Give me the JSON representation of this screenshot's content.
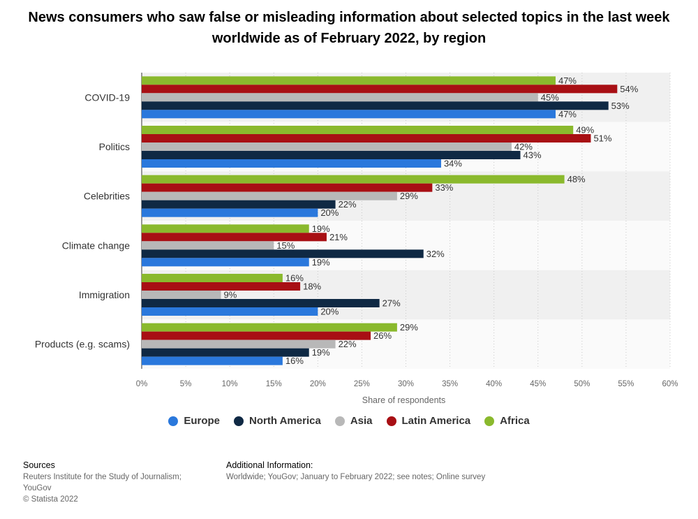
{
  "header": {
    "title": "News consumers who saw false or misleading information about selected topics in the last week worldwide as of February 2022, by region"
  },
  "chart_data": {
    "type": "bar",
    "orientation": "horizontal",
    "categories": [
      "COVID-19",
      "Politics",
      "Celebrities",
      "Climate change",
      "Immigration",
      "Products (e.g. scams)"
    ],
    "series": [
      {
        "name": "Africa",
        "color": "#8ab92d",
        "values": [
          47,
          49,
          48,
          19,
          16,
          29
        ]
      },
      {
        "name": "Latin America",
        "color": "#a80f14",
        "values": [
          54,
          51,
          33,
          21,
          18,
          26
        ]
      },
      {
        "name": "Asia",
        "color": "#b8b8b8",
        "values": [
          45,
          42,
          29,
          15,
          9,
          22
        ]
      },
      {
        "name": "North America",
        "color": "#0f2944",
        "values": [
          53,
          43,
          22,
          32,
          27,
          19
        ]
      },
      {
        "name": "Europe",
        "color": "#2a78dc",
        "values": [
          47,
          34,
          20,
          19,
          20,
          16
        ]
      }
    ],
    "xlabel": "Share of respondents",
    "xlim": [
      0,
      60
    ],
    "ticks": [
      "0%",
      "5%",
      "10%",
      "15%",
      "20%",
      "25%",
      "30%",
      "35%",
      "40%",
      "45%",
      "50%",
      "55%",
      "60%"
    ],
    "value_suffix": "%",
    "legend_order": [
      "Europe",
      "North America",
      "Asia",
      "Latin America",
      "Africa"
    ],
    "legend_position": "bottom",
    "grid": true
  },
  "footer": {
    "sources_heading": "Sources",
    "sources_line1": "Reuters Institute for the Study of Journalism;",
    "sources_line2": "YouGov",
    "copyright": "© Statista 2022",
    "additional_heading": "Additional Information:",
    "additional_text": "Worldwide; YouGov; January to February 2022; see notes; Online survey"
  }
}
